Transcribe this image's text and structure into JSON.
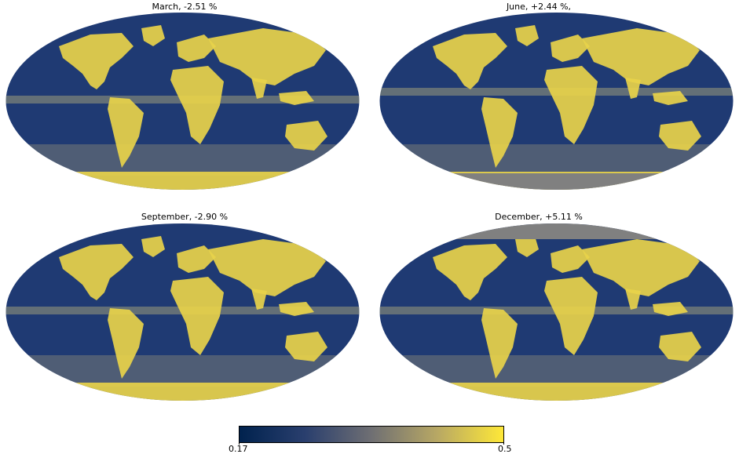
{
  "panels": [
    {
      "title": "March, -2.51 %"
    },
    {
      "title": "June, +2.44 %,"
    },
    {
      "title": "September, -2.90 %"
    },
    {
      "title": "December, +5.11 %"
    }
  ],
  "colorbar": {
    "min_label": "0.17",
    "max_label": "0.5",
    "colormap": "cividis",
    "colors": [
      "#00224e",
      "#2a3f6e",
      "#6f6f73",
      "#b8a864",
      "#fee838"
    ]
  },
  "map_style": {
    "projection": "mollweide",
    "ocean_color": "#1f3a73",
    "land_color": "#e8d24a",
    "missing_color": "#808080"
  }
}
